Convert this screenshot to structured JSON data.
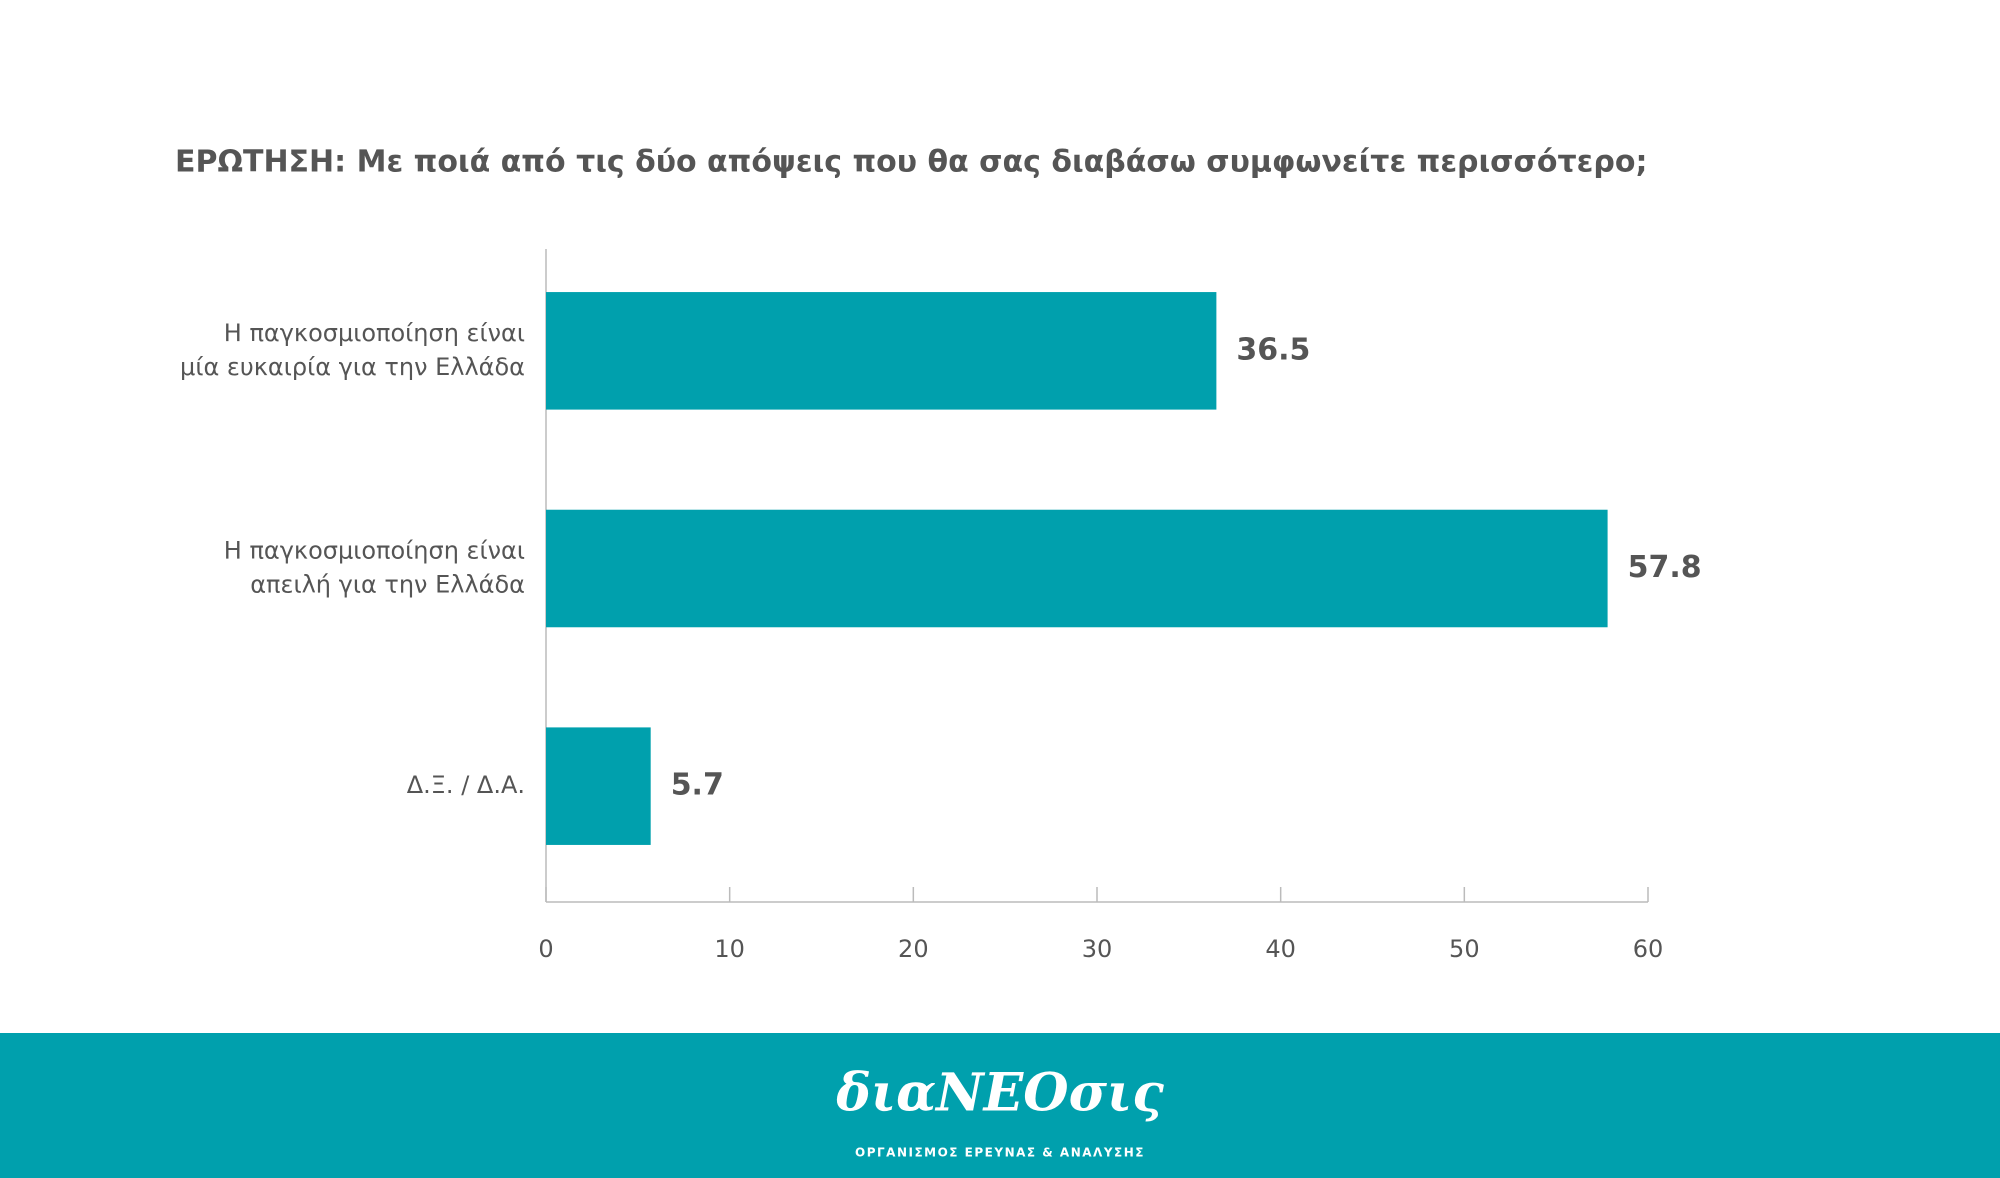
{
  "chart_data": {
    "type": "bar",
    "orientation": "horizontal",
    "title": "ΕΡΩΤΗΣΗ: Με ποιά από τις δύο απόψεις που θα σας διαβάσω συμφωνείτε περισσότερο;",
    "categories": [
      "Η παγκοσμιοποίηση είναι\nμία ευκαιρία για την Ελλάδα",
      "Η παγκοσμιοποίηση είναι\nαπειλή για την Ελλάδα",
      "Δ.Ξ. / Δ.Α."
    ],
    "values": [
      36.5,
      57.8,
      5.7
    ],
    "color": "#00a0ad",
    "xlim": [
      0,
      60
    ],
    "xticks": [
      0,
      10,
      20,
      30,
      40,
      50,
      60
    ],
    "grid": false
  },
  "footer": {
    "logo": "διαNEOσις",
    "tagline": "ΟΡΓΑΝΙΣΜΟΣ ΕΡΕΥΝΑΣ & ΑΝΑΛΥΣΗΣ"
  }
}
